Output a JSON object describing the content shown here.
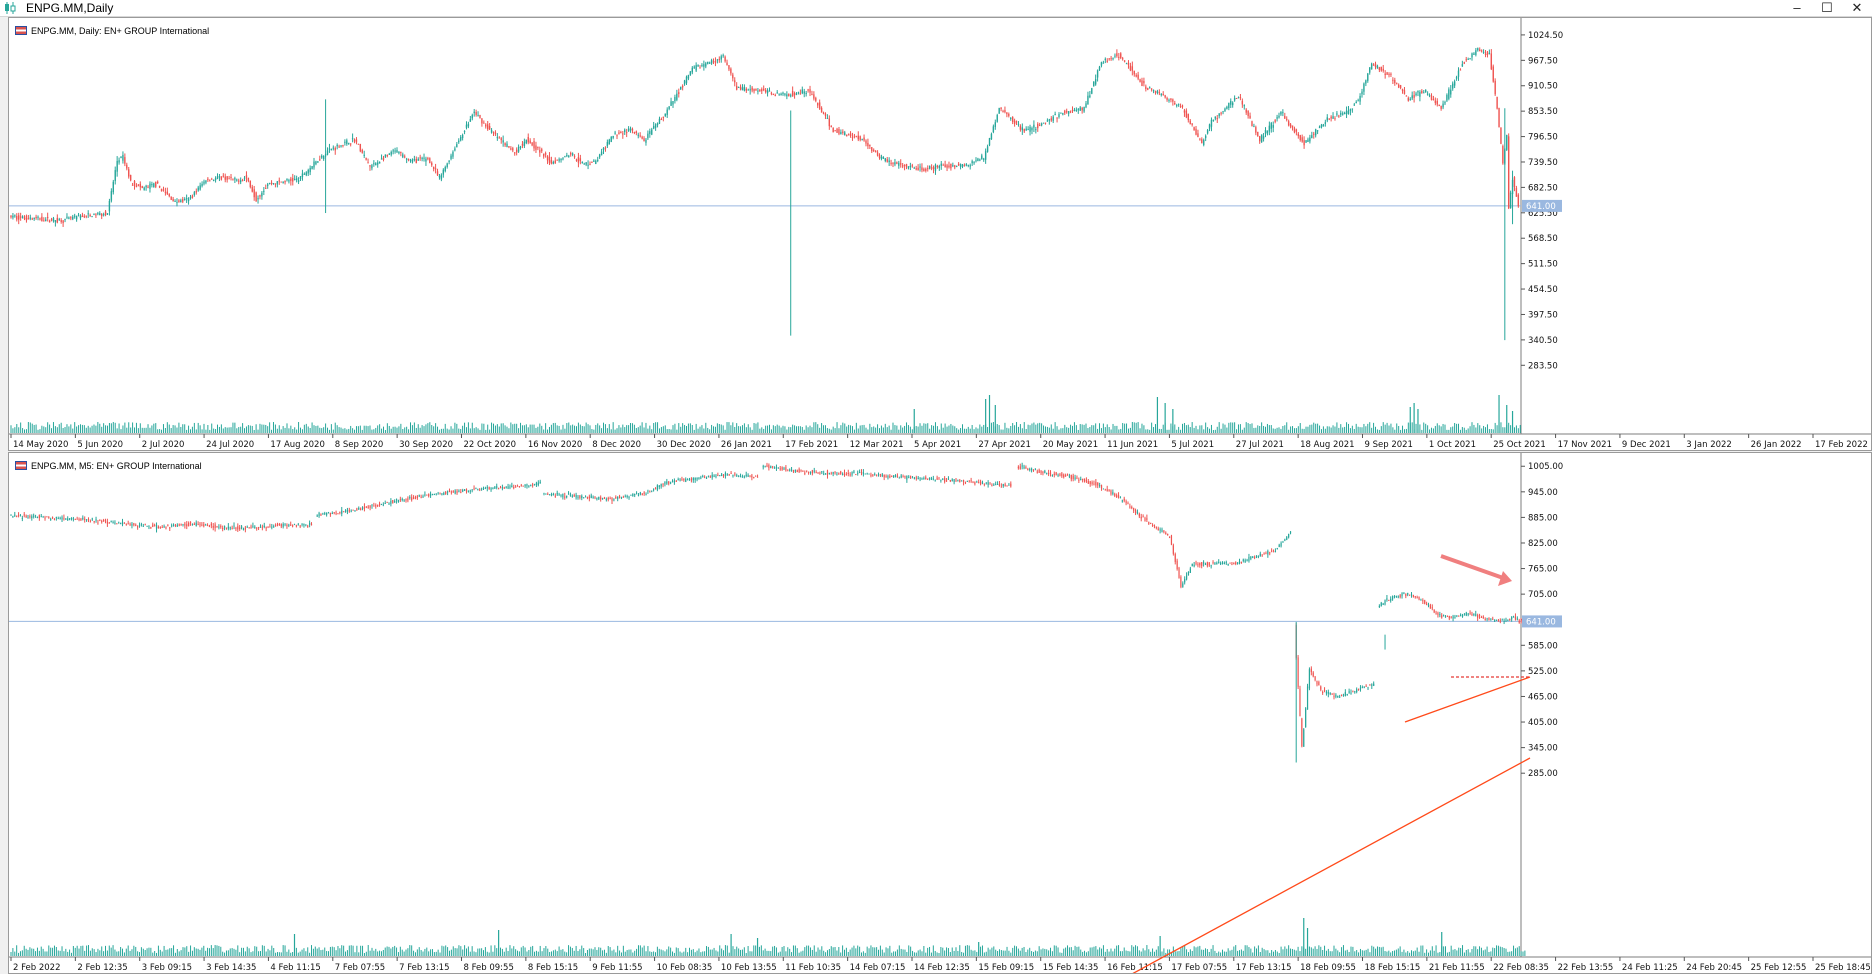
{
  "window": {
    "title": "ENPG.MM,Daily",
    "controls": [
      "–",
      "☐",
      "✕"
    ]
  },
  "colors": {
    "bull": "#26a69a",
    "bear": "#ef5350",
    "trendline": "#ff4a1a",
    "resistance": "#e53935",
    "price_line": "#9ab8e0",
    "price_tag": "#9ab8e0",
    "volume": "#26a69a"
  },
  "pane_daily": {
    "legend": "ENPG.MM, Daily:  EN+ GROUP International",
    "price_tag": "641.00",
    "y_axis_ticks": [
      "1024.50",
      "967.50",
      "910.50",
      "853.50",
      "796.50",
      "739.50",
      "682.50",
      "625.50",
      "568.50",
      "511.50",
      "454.50",
      "397.50",
      "340.50",
      "283.50"
    ],
    "x_axis_ticks": [
      "14 May 2020",
      "5 Jun 2020",
      "2 Jul 2020",
      "24 Jul 2020",
      "17 Aug 2020",
      "8 Sep 2020",
      "30 Sep 2020",
      "22 Oct 2020",
      "16 Nov 2020",
      "8 Dec 2020",
      "30 Dec 2020",
      "26 Jan 2021",
      "17 Feb 2021",
      "12 Mar 2021",
      "5 Apr 2021",
      "27 Apr 2021",
      "20 May 2021",
      "11 Jun 2021",
      "5 Jul 2021",
      "27 Jul 2021",
      "18 Aug 2021",
      "9 Sep 2021",
      "1 Oct 2021",
      "25 Oct 2021",
      "17 Nov 2021",
      "9 Dec 2021",
      "3 Jan 2022",
      "26 Jan 2022",
      "17 Feb 2022"
    ],
    "y_range": [
      255,
      1040
    ],
    "anchors": [
      [
        0,
        617
      ],
      [
        28,
        608
      ],
      [
        31,
        612
      ],
      [
        35,
        616
      ],
      [
        39,
        618
      ],
      [
        51,
        625
      ],
      [
        56,
        742
      ],
      [
        59,
        750
      ],
      [
        63,
        695
      ],
      [
        69,
        680
      ],
      [
        76,
        690
      ],
      [
        86,
        650
      ],
      [
        93,
        655
      ],
      [
        102,
        700
      ],
      [
        111,
        704
      ],
      [
        117,
        697
      ],
      [
        123,
        705
      ],
      [
        128,
        656
      ],
      [
        134,
        690
      ],
      [
        150,
        701
      ],
      [
        165,
        765
      ],
      [
        179,
        790
      ],
      [
        187,
        728
      ],
      [
        200,
        765
      ],
      [
        208,
        742
      ],
      [
        217,
        747
      ],
      [
        223,
        702
      ],
      [
        231,
        772
      ],
      [
        241,
        851
      ],
      [
        249,
        811
      ],
      [
        262,
        760
      ],
      [
        268,
        792
      ],
      [
        281,
        738
      ],
      [
        291,
        759
      ],
      [
        297,
        735
      ],
      [
        304,
        741
      ],
      [
        313,
        800
      ],
      [
        322,
        812
      ],
      [
        329,
        787
      ],
      [
        340,
        848
      ],
      [
        354,
        948
      ],
      [
        370,
        975
      ],
      [
        377,
        905
      ],
      [
        389,
        900
      ],
      [
        403,
        890
      ],
      [
        414,
        902
      ],
      [
        419,
        867
      ],
      [
        427,
        810
      ],
      [
        442,
        792
      ],
      [
        451,
        750
      ],
      [
        464,
        728
      ],
      [
        475,
        722
      ],
      [
        482,
        730
      ],
      [
        496,
        732
      ],
      [
        505,
        750
      ],
      [
        513,
        860
      ],
      [
        526,
        810
      ],
      [
        534,
        822
      ],
      [
        546,
        850
      ],
      [
        557,
        860
      ],
      [
        566,
        965
      ],
      [
        575,
        980
      ],
      [
        588,
        910
      ],
      [
        597,
        890
      ],
      [
        608,
        860
      ],
      [
        618,
        780
      ],
      [
        623,
        830
      ],
      [
        637,
        888
      ],
      [
        648,
        790
      ],
      [
        659,
        850
      ],
      [
        671,
        780
      ],
      [
        683,
        835
      ],
      [
        693,
        850
      ],
      [
        699,
        877
      ],
      [
        706,
        960
      ],
      [
        716,
        930
      ],
      [
        725,
        880
      ],
      [
        733,
        900
      ],
      [
        742,
        860
      ],
      [
        753,
        960
      ],
      [
        761,
        990
      ],
      [
        767,
        980
      ],
      [
        771,
        860
      ],
      [
        774,
        735
      ],
      [
        776,
        800
      ],
      [
        777,
        640
      ],
      [
        779,
        700
      ],
      [
        782,
        641
      ]
    ],
    "extra_wicks": [
      [
        163,
        625,
        880
      ],
      [
        404,
        350,
        855
      ],
      [
        774,
        340,
        860
      ],
      [
        778,
        600,
        720
      ]
    ],
    "volume_spikes": [
      [
        468,
        0.6
      ],
      [
        505,
        0.85
      ],
      [
        507,
        0.95
      ],
      [
        510,
        0.7
      ],
      [
        594,
        0.9
      ],
      [
        598,
        0.75
      ],
      [
        602,
        0.6
      ],
      [
        725,
        0.65
      ],
      [
        727,
        0.75
      ],
      [
        729,
        0.6
      ],
      [
        771,
        0.95
      ],
      [
        775,
        0.7
      ],
      [
        778,
        0.55
      ]
    ],
    "support_line": [
      [
        140,
        590
      ],
      [
        1517,
        778
      ]
    ],
    "resistance_line": [
      [
        861,
        980
      ],
      [
        1511,
        976
      ],
      [
        1512,
        985
      ]
    ],
    "dotted_target": [
      [
        1468,
        678
      ],
      [
        1520,
        678
      ]
    ],
    "current_price": 641
  },
  "pane_m5": {
    "legend": "ENPG.MM, M5:  EN+ GROUP International",
    "price_tag": "641.00",
    "y_axis_ticks": [
      "1005.00",
      "945.00",
      "885.00",
      "825.00",
      "765.00",
      "705.00",
      "645.00",
      "585.00",
      "525.00",
      "465.00",
      "405.00",
      "345.00",
      "285.00"
    ],
    "x_axis_ticks": [
      "2 Feb 2022",
      "2 Feb 12:35",
      "3 Feb 09:15",
      "3 Feb 14:35",
      "4 Feb 11:15",
      "7 Feb 07:55",
      "7 Feb 13:15",
      "8 Feb 09:55",
      "8 Feb 15:15",
      "9 Feb 11:55",
      "10 Feb 08:35",
      "10 Feb 13:55",
      "11 Feb 10:35",
      "14 Feb 07:15",
      "14 Feb 12:35",
      "15 Feb 09:15",
      "15 Feb 14:35",
      "16 Feb 11:15",
      "17 Feb 07:55",
      "17 Feb 13:15",
      "18 Feb 09:55",
      "18 Feb 15:15",
      "21 Feb 11:55",
      "22 Feb 08:35",
      "22 Feb 13:55",
      "24 Feb 11:25",
      "24 Feb 20:45",
      "25 Feb 12:55",
      "25 Feb 18:45"
    ],
    "y_range": [
      262,
      1022
    ],
    "segments": [
      [
        [
          0,
          890
        ],
        [
          40,
          880
        ],
        [
          62,
          870
        ],
        [
          80,
          862
        ],
        [
          96,
          870
        ],
        [
          112,
          862
        ],
        [
          128,
          860
        ],
        [
          140,
          866
        ],
        [
          160,
          868
        ]
      ],
      [
        [
          162,
          890
        ],
        [
          180,
          900
        ],
        [
          198,
          918
        ],
        [
          218,
          935
        ],
        [
          240,
          948
        ],
        [
          262,
          955
        ],
        [
          278,
          962
        ],
        [
          281,
          970
        ]
      ],
      [
        [
          282,
          940
        ],
        [
          300,
          935
        ],
        [
          318,
          928
        ],
        [
          338,
          945
        ],
        [
          350,
          970
        ],
        [
          362,
          975
        ],
        [
          378,
          985
        ],
        [
          396,
          980
        ]
      ],
      [
        [
          398,
          1008
        ],
        [
          414,
          995
        ],
        [
          432,
          990
        ],
        [
          450,
          988
        ],
        [
          470,
          980
        ],
        [
          490,
          975
        ],
        [
          508,
          968
        ],
        [
          520,
          962
        ],
        [
          530,
          960
        ]
      ],
      [
        [
          533,
          1005
        ],
        [
          548,
          990
        ],
        [
          560,
          982
        ],
        [
          575,
          962
        ],
        [
          588,
          930
        ],
        [
          602,
          875
        ],
        [
          614,
          840
        ],
        [
          620,
          725
        ],
        [
          626,
          775
        ],
        [
          650,
          778
        ],
        [
          670,
          810
        ],
        [
          678,
          850
        ]
      ],
      [
        [
          680,
          630
        ],
        [
          684,
          345
        ],
        [
          688,
          530
        ],
        [
          694,
          480
        ],
        [
          702,
          465
        ],
        [
          710,
          475
        ],
        [
          718,
          490
        ],
        [
          722,
          495
        ]
      ],
      [
        [
          724,
          675
        ],
        [
          732,
          700
        ],
        [
          740,
          705
        ],
        [
          748,
          690
        ],
        [
          756,
          655
        ],
        [
          764,
          650
        ],
        [
          772,
          660
        ],
        [
          780,
          648
        ],
        [
          788,
          642
        ],
        [
          796,
          650
        ],
        [
          800,
          641
        ]
      ]
    ],
    "extra_wicks": [
      [
        680,
        310,
        640
      ],
      [
        727,
        575,
        610
      ]
    ],
    "volume_spikes": [
      [
        150,
        0.55
      ],
      [
        258,
        0.65
      ],
      [
        381,
        0.55
      ],
      [
        395,
        0.45
      ],
      [
        512,
        0.35
      ],
      [
        608,
        0.5
      ],
      [
        684,
        0.95
      ],
      [
        686,
        0.7
      ],
      [
        757,
        0.6
      ]
    ],
    "trend_line": [
      [
        1048,
        1018
      ],
      [
        1529,
        757
      ]
    ],
    "flag_line": [
      [
        1404,
        721
      ],
      [
        1529,
        676
      ]
    ],
    "dotted_target": [
      [
        1450,
        676
      ],
      [
        1529,
        676
      ]
    ],
    "arrow": [
      [
        1440,
        555
      ],
      [
        1505,
        578
      ]
    ],
    "current_price": 641
  }
}
